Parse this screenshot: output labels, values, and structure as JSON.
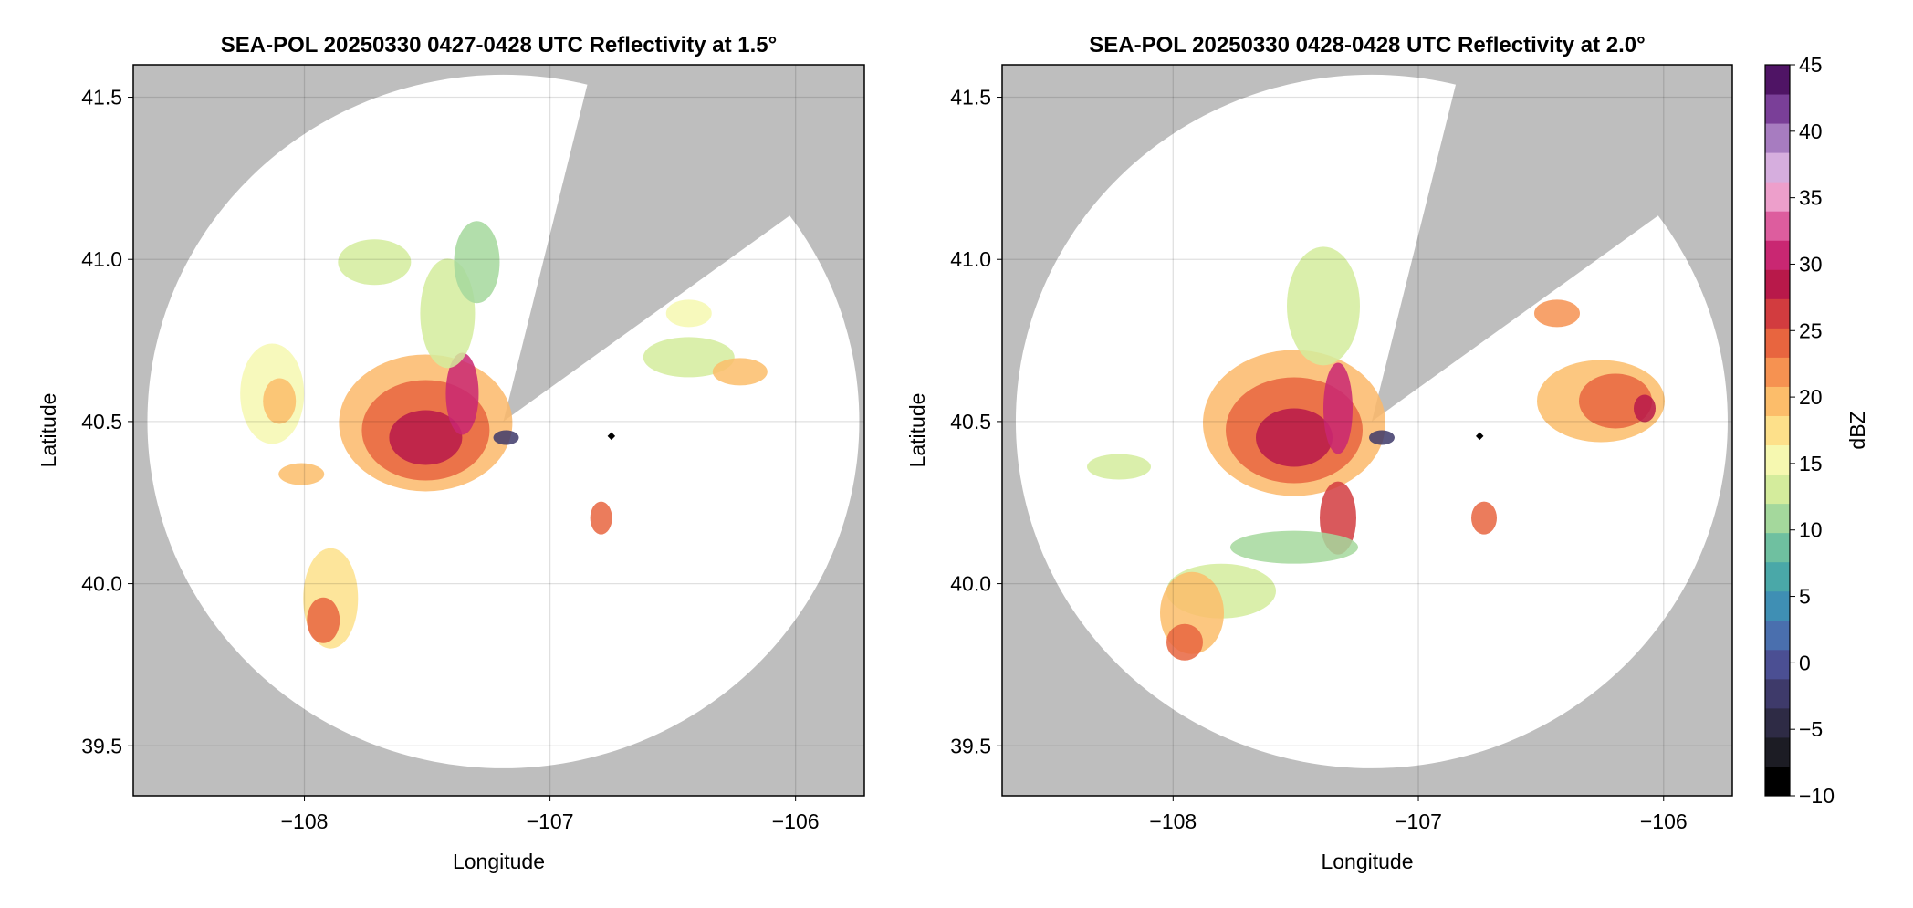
{
  "chart_data": [
    {
      "type": "radar",
      "title": "SEA-POL 20250330 0427-0428 UTC Reflectivity at 1.5°",
      "xlabel": "Longitude",
      "ylabel": "Latitude",
      "xlim": [
        -108.697,
        -105.72
      ],
      "ylim": [
        39.346,
        41.6
      ],
      "xticks": [
        {
          "value": -108,
          "label": "−108"
        },
        {
          "value": -107,
          "label": "−107"
        },
        {
          "value": -106,
          "label": "−106"
        }
      ],
      "yticks": [
        39.5,
        {
          "value": 40,
          "label": "40.0"
        },
        40.5,
        {
          "value": 41,
          "label": "41.0"
        },
        41.5
      ],
      "grid": true
    },
    {
      "type": "radar",
      "title": "SEA-POL 20250330 0428-0428 UTC Reflectivity at 2.0°",
      "xlabel": "Longitude",
      "ylabel": "Latitude",
      "xlim": [
        -108.697,
        -105.72
      ],
      "ylim": [
        39.346,
        41.6
      ],
      "xticks": [
        {
          "value": -108,
          "label": "−108"
        },
        {
          "value": -107,
          "label": "−107"
        },
        {
          "value": -106,
          "label": "−106"
        }
      ],
      "yticks": [
        39.5,
        {
          "value": 40,
          "label": "40.0"
        },
        40.5,
        {
          "value": 41,
          "label": "41.0"
        },
        41.5
      ],
      "grid": true
    },
    {
      "type": "colorbar",
      "label": "dBZ",
      "lim": [
        -10,
        45
      ],
      "ticks": [
        {
          "value": -10,
          "label": "−10"
        },
        {
          "value": -5,
          "label": "−5"
        },
        0,
        5,
        10,
        15,
        20,
        25,
        30,
        35,
        40,
        45
      ],
      "colors": [
        "#000000",
        "#1c1c24",
        "#2e2b45",
        "#3e3a6a",
        "#4b4f93",
        "#4a6fae",
        "#3f8fb4",
        "#4aa8a8",
        "#6fc0a0",
        "#a4d89c",
        "#d4ec9c",
        "#f6f8b0",
        "#fde08a",
        "#fcbd6a",
        "#f69251",
        "#e8653f",
        "#d23c3f",
        "#b8194a",
        "#c92772",
        "#dd5d9e",
        "#ed9fcb",
        "#d6aede",
        "#a77cc0",
        "#7a3f98",
        "#4f1465"
      ]
    }
  ]
}
